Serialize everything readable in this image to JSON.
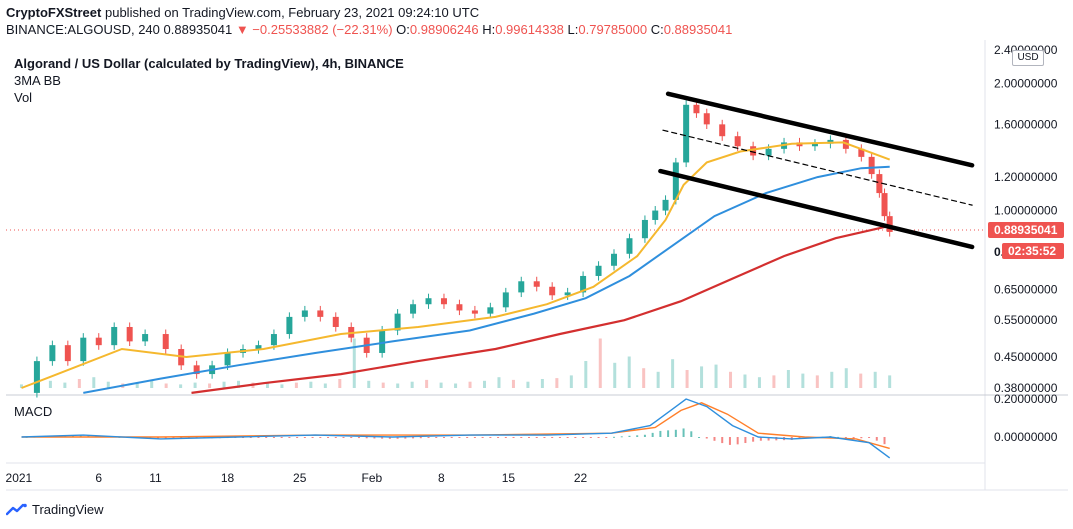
{
  "publish": {
    "author": "CryptoFXStreet",
    "text": "published on TradingView.com, February 23, 2021 09:24:10 UTC"
  },
  "quote": {
    "symbol": "BINANCE:ALGOUSD, 240",
    "last": "0.88935041",
    "change": "▼ −0.25533882 (−22.31%)",
    "open_label": "O:",
    "open": "0.98906246",
    "high_label": "H:",
    "high": "0.99614338",
    "low_label": "L:",
    "low": "0.79785000",
    "close_label": "C:",
    "close": "0.88935041"
  },
  "legend": {
    "title": "Algorand / US Dollar (calculated by TradingView), 4h, BINANCE",
    "indicator1": "3MA BB",
    "indicator2": "Vol"
  },
  "macd_label": "MACD",
  "currency_button": "USD",
  "branding": "TradingView",
  "colors": {
    "up": "#26a69a",
    "down": "#ef5350",
    "ma_fast": "#f5b82e",
    "ma_mid": "#2f8fdd",
    "ma_slow": "#d32f2f",
    "price_tag": "#ef5350"
  },
  "chart_data": {
    "type": "line",
    "price_axis": {
      "scale": "log",
      "ticks": [
        "2.40000000",
        "2.00000000",
        "1.60000000",
        "1.20000000",
        "1.00000000",
        "0.65000000",
        "0.55000000",
        "0.45000000",
        "0.38000000"
      ],
      "partial_tick": "0.",
      "last_price_tag": "0.88935041",
      "countdown_tag": "02:35:52"
    },
    "macd_axis": {
      "ticks": [
        "0.20000000",
        "0.00000000"
      ]
    },
    "x_axis": {
      "ticks": [
        "2021",
        "6",
        "11",
        "18",
        "25",
        "Feb",
        "8",
        "15",
        "22"
      ]
    },
    "ma_fast": [
      {
        "x": 6,
        "y": 0.38
      },
      {
        "x": 20,
        "y": 0.41
      },
      {
        "x": 45,
        "y": 0.47
      },
      {
        "x": 70,
        "y": 0.45
      },
      {
        "x": 100,
        "y": 0.47
      },
      {
        "x": 130,
        "y": 0.51
      },
      {
        "x": 160,
        "y": 0.53
      },
      {
        "x": 190,
        "y": 0.56
      },
      {
        "x": 210,
        "y": 0.6
      },
      {
        "x": 228,
        "y": 0.66
      },
      {
        "x": 245,
        "y": 0.78
      },
      {
        "x": 256,
        "y": 0.95
      },
      {
        "x": 263,
        "y": 1.15
      },
      {
        "x": 272,
        "y": 1.3
      },
      {
        "x": 285,
        "y": 1.38
      },
      {
        "x": 305,
        "y": 1.44
      },
      {
        "x": 325,
        "y": 1.45
      },
      {
        "x": 343,
        "y": 1.32
      }
    ],
    "ma_mid": [
      {
        "x": 30,
        "y": 0.37
      },
      {
        "x": 60,
        "y": 0.4
      },
      {
        "x": 90,
        "y": 0.43
      },
      {
        "x": 120,
        "y": 0.46
      },
      {
        "x": 150,
        "y": 0.49
      },
      {
        "x": 180,
        "y": 0.52
      },
      {
        "x": 205,
        "y": 0.57
      },
      {
        "x": 225,
        "y": 0.62
      },
      {
        "x": 242,
        "y": 0.7
      },
      {
        "x": 258,
        "y": 0.82
      },
      {
        "x": 275,
        "y": 0.97
      },
      {
        "x": 295,
        "y": 1.1
      },
      {
        "x": 315,
        "y": 1.2
      },
      {
        "x": 332,
        "y": 1.26
      },
      {
        "x": 343,
        "y": 1.27
      }
    ],
    "ma_slow": [
      {
        "x": 72,
        "y": 0.37
      },
      {
        "x": 100,
        "y": 0.39
      },
      {
        "x": 130,
        "y": 0.41
      },
      {
        "x": 160,
        "y": 0.44
      },
      {
        "x": 190,
        "y": 0.47
      },
      {
        "x": 215,
        "y": 0.51
      },
      {
        "x": 240,
        "y": 0.55
      },
      {
        "x": 262,
        "y": 0.61
      },
      {
        "x": 282,
        "y": 0.69
      },
      {
        "x": 302,
        "y": 0.78
      },
      {
        "x": 322,
        "y": 0.86
      },
      {
        "x": 343,
        "y": 0.92
      }
    ],
    "price": [
      {
        "x": 6,
        "y": 0.37
      },
      {
        "x": 12,
        "y": 0.44
      },
      {
        "x": 18,
        "y": 0.48
      },
      {
        "x": 24,
        "y": 0.44
      },
      {
        "x": 30,
        "y": 0.5
      },
      {
        "x": 36,
        "y": 0.48
      },
      {
        "x": 42,
        "y": 0.53
      },
      {
        "x": 48,
        "y": 0.49
      },
      {
        "x": 54,
        "y": 0.51
      },
      {
        "x": 62,
        "y": 0.47
      },
      {
        "x": 68,
        "y": 0.43
      },
      {
        "x": 74,
        "y": 0.41
      },
      {
        "x": 80,
        "y": 0.43
      },
      {
        "x": 86,
        "y": 0.46
      },
      {
        "x": 92,
        "y": 0.47
      },
      {
        "x": 98,
        "y": 0.48
      },
      {
        "x": 104,
        "y": 0.51
      },
      {
        "x": 110,
        "y": 0.56
      },
      {
        "x": 116,
        "y": 0.58
      },
      {
        "x": 122,
        "y": 0.56
      },
      {
        "x": 128,
        "y": 0.53
      },
      {
        "x": 134,
        "y": 0.5
      },
      {
        "x": 140,
        "y": 0.46
      },
      {
        "x": 146,
        "y": 0.52
      },
      {
        "x": 152,
        "y": 0.57
      },
      {
        "x": 158,
        "y": 0.6
      },
      {
        "x": 164,
        "y": 0.62
      },
      {
        "x": 170,
        "y": 0.6
      },
      {
        "x": 176,
        "y": 0.58
      },
      {
        "x": 182,
        "y": 0.57
      },
      {
        "x": 188,
        "y": 0.59
      },
      {
        "x": 194,
        "y": 0.64
      },
      {
        "x": 200,
        "y": 0.68
      },
      {
        "x": 206,
        "y": 0.66
      },
      {
        "x": 212,
        "y": 0.63
      },
      {
        "x": 218,
        "y": 0.64
      },
      {
        "x": 224,
        "y": 0.7
      },
      {
        "x": 230,
        "y": 0.74
      },
      {
        "x": 236,
        "y": 0.79
      },
      {
        "x": 242,
        "y": 0.86
      },
      {
        "x": 248,
        "y": 0.95
      },
      {
        "x": 252,
        "y": 1.0
      },
      {
        "x": 256,
        "y": 1.06
      },
      {
        "x": 260,
        "y": 1.3
      },
      {
        "x": 264,
        "y": 1.78
      },
      {
        "x": 268,
        "y": 1.7
      },
      {
        "x": 272,
        "y": 1.6
      },
      {
        "x": 278,
        "y": 1.5
      },
      {
        "x": 284,
        "y": 1.42
      },
      {
        "x": 290,
        "y": 1.35
      },
      {
        "x": 296,
        "y": 1.4
      },
      {
        "x": 302,
        "y": 1.45
      },
      {
        "x": 308,
        "y": 1.42
      },
      {
        "x": 314,
        "y": 1.44
      },
      {
        "x": 320,
        "y": 1.47
      },
      {
        "x": 326,
        "y": 1.4
      },
      {
        "x": 332,
        "y": 1.34
      },
      {
        "x": 336,
        "y": 1.22
      },
      {
        "x": 339,
        "y": 1.1
      },
      {
        "x": 341,
        "y": 0.97
      },
      {
        "x": 343,
        "y": 0.89
      }
    ],
    "volume": [
      0.04,
      0.05,
      0.08,
      0.06,
      0.1,
      0.12,
      0.07,
      0.05,
      0.06,
      0.09,
      0.05,
      0.04,
      0.06,
      0.05,
      0.07,
      0.08,
      0.06,
      0.05,
      0.04,
      0.06,
      0.07,
      0.05,
      0.1,
      0.55,
      0.08,
      0.06,
      0.05,
      0.07,
      0.09,
      0.06,
      0.05,
      0.07,
      0.08,
      0.12,
      0.09,
      0.07,
      0.1,
      0.11,
      0.14,
      0.3,
      0.55,
      0.28,
      0.35,
      0.22,
      0.18,
      0.32,
      0.2,
      0.24,
      0.26,
      0.18,
      0.15,
      0.12,
      0.14,
      0.2,
      0.16,
      0.14,
      0.18,
      0.22,
      0.16,
      0.18,
      0.14
    ],
    "macd": [
      {
        "x": 6,
        "y": 0.0
      },
      {
        "x": 30,
        "y": 0.01
      },
      {
        "x": 60,
        "y": -0.01
      },
      {
        "x": 90,
        "y": 0.0
      },
      {
        "x": 120,
        "y": 0.01
      },
      {
        "x": 150,
        "y": 0.0
      },
      {
        "x": 180,
        "y": 0.01
      },
      {
        "x": 210,
        "y": 0.01
      },
      {
        "x": 235,
        "y": 0.02
      },
      {
        "x": 250,
        "y": 0.06
      },
      {
        "x": 258,
        "y": 0.14
      },
      {
        "x": 264,
        "y": 0.2
      },
      {
        "x": 272,
        "y": 0.16
      },
      {
        "x": 282,
        "y": 0.06
      },
      {
        "x": 292,
        "y": 0.0
      },
      {
        "x": 305,
        "y": -0.01
      },
      {
        "x": 320,
        "y": 0.0
      },
      {
        "x": 335,
        "y": -0.03
      },
      {
        "x": 343,
        "y": -0.11
      }
    ],
    "signal": [
      {
        "x": 6,
        "y": 0.0
      },
      {
        "x": 60,
        "y": 0.0
      },
      {
        "x": 120,
        "y": 0.01
      },
      {
        "x": 180,
        "y": 0.01
      },
      {
        "x": 235,
        "y": 0.02
      },
      {
        "x": 252,
        "y": 0.05
      },
      {
        "x": 262,
        "y": 0.14
      },
      {
        "x": 270,
        "y": 0.18
      },
      {
        "x": 280,
        "y": 0.12
      },
      {
        "x": 292,
        "y": 0.02
      },
      {
        "x": 310,
        "y": 0.0
      },
      {
        "x": 330,
        "y": -0.01
      },
      {
        "x": 343,
        "y": -0.06
      }
    ],
    "channel_upper": [
      {
        "x": 257,
        "y": 1.89
      },
      {
        "x": 375,
        "y": 1.28
      }
    ],
    "channel_lower": [
      {
        "x": 254,
        "y": 1.24
      },
      {
        "x": 375,
        "y": 0.82
      }
    ],
    "channel_mid": [
      {
        "x": 255,
        "y": 1.55
      },
      {
        "x": 375,
        "y": 1.03
      }
    ]
  }
}
